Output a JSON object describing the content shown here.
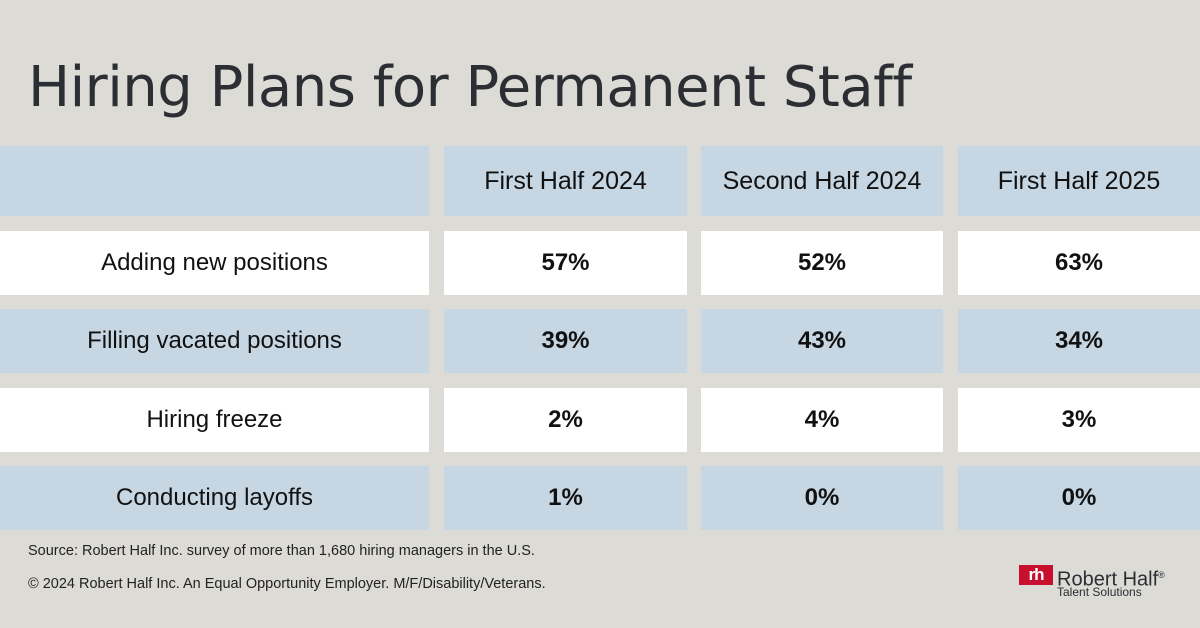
{
  "title": "Hiring Plans for Permanent Staff",
  "chart_data": {
    "type": "table",
    "columns": [
      "First Half 2024",
      "Second Half 2024",
      "First Half 2025"
    ],
    "rows": [
      {
        "label": "Adding new positions",
        "values": [
          "57%",
          "52%",
          "63%"
        ]
      },
      {
        "label": "Filling vacated positions",
        "values": [
          "39%",
          "43%",
          "34%"
        ]
      },
      {
        "label": "Hiring freeze",
        "values": [
          "2%",
          "4%",
          "3%"
        ]
      },
      {
        "label": "Conducting layoffs",
        "values": [
          "1%",
          "0%",
          "0%"
        ]
      }
    ]
  },
  "footer": {
    "source": "Source: Robert Half Inc. survey of more than 1,680 hiring managers in the U.S.",
    "copyright": "© 2024 Robert Half Inc. An Equal Opportunity Employer. M/F/Disability/Veterans."
  },
  "logo": {
    "mark": "rh",
    "name": "Robert Half",
    "registered": "®",
    "subtitle": "Talent Solutions",
    "color": "#c8102e"
  },
  "colors": {
    "background": "#dcdbd6",
    "row_blue": "#c6d6e2",
    "row_white": "#ffffff"
  }
}
